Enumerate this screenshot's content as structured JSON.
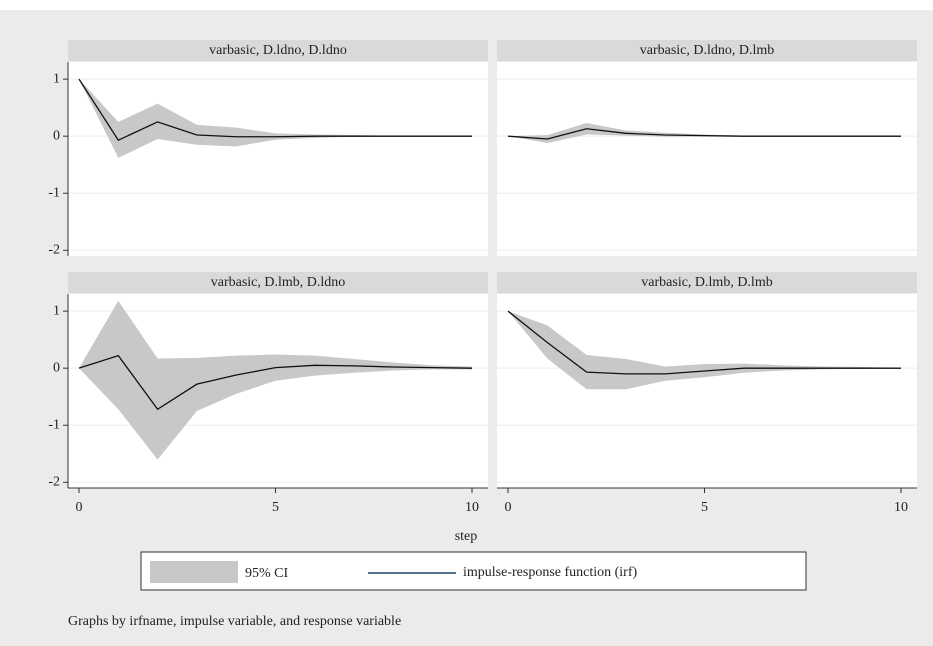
{
  "chart_data": {
    "type": "line",
    "xlabel": "step",
    "note": "Graphs by irfname, impulse variable, and response variable",
    "x": [
      0,
      1,
      2,
      3,
      4,
      5,
      6,
      7,
      8,
      9,
      10
    ],
    "xlim": [
      0,
      10
    ],
    "xticks": [
      0,
      5,
      10
    ],
    "ylim": [
      -2.1,
      1.3
    ],
    "yticks": [
      -2,
      -1,
      0,
      1
    ],
    "grid": true,
    "ci": {
      "name": "95% CI",
      "color": "#c8c8c8"
    },
    "irf": {
      "name": "impulse-response function (irf)",
      "color": "#1a476f"
    },
    "panels": [
      {
        "title": "varbasic, D.ldno, D.ldno",
        "values": [
          1,
          -0.07,
          0.25,
          0.02,
          -0.01,
          -0.01,
          0,
          0,
          0,
          0,
          0
        ],
        "lower": [
          1,
          -0.38,
          -0.05,
          -0.15,
          -0.18,
          -0.06,
          -0.03,
          -0.01,
          0,
          0,
          0
        ],
        "upper": [
          1,
          0.25,
          0.57,
          0.2,
          0.15,
          0.05,
          0.03,
          0.02,
          0.01,
          0.01,
          0
        ]
      },
      {
        "title": "varbasic, D.ldno, D.lmb",
        "values": [
          0,
          -0.05,
          0.13,
          0.05,
          0.02,
          0.01,
          0,
          0,
          0,
          0,
          0
        ],
        "lower": [
          0,
          -0.12,
          0.03,
          0.01,
          -0.01,
          -0.01,
          -0.01,
          0,
          0,
          0,
          0
        ],
        "upper": [
          0,
          0.02,
          0.23,
          0.1,
          0.06,
          0.03,
          0.01,
          0.01,
          0,
          0,
          0
        ]
      },
      {
        "title": "varbasic, D.lmb, D.ldno",
        "values": [
          0,
          0.22,
          -0.72,
          -0.28,
          -0.12,
          0.01,
          0.05,
          0.04,
          0.02,
          0.01,
          0
        ],
        "lower": [
          0,
          -0.72,
          -1.6,
          -0.75,
          -0.45,
          -0.22,
          -0.13,
          -0.08,
          -0.04,
          -0.02,
          -0.02
        ],
        "upper": [
          0,
          1.18,
          0.17,
          0.18,
          0.22,
          0.24,
          0.22,
          0.16,
          0.1,
          0.05,
          0.03
        ]
      },
      {
        "title": "varbasic, D.lmb, D.lmb",
        "values": [
          1,
          0.45,
          -0.07,
          -0.1,
          -0.1,
          -0.05,
          0,
          0,
          0,
          0,
          0
        ],
        "lower": [
          1,
          0.17,
          -0.37,
          -0.37,
          -0.22,
          -0.16,
          -0.08,
          -0.04,
          -0.02,
          -0.01,
          0
        ],
        "upper": [
          1,
          0.75,
          0.23,
          0.16,
          0.03,
          0.07,
          0.08,
          0.05,
          0.03,
          0.02,
          0.01
        ]
      }
    ]
  }
}
